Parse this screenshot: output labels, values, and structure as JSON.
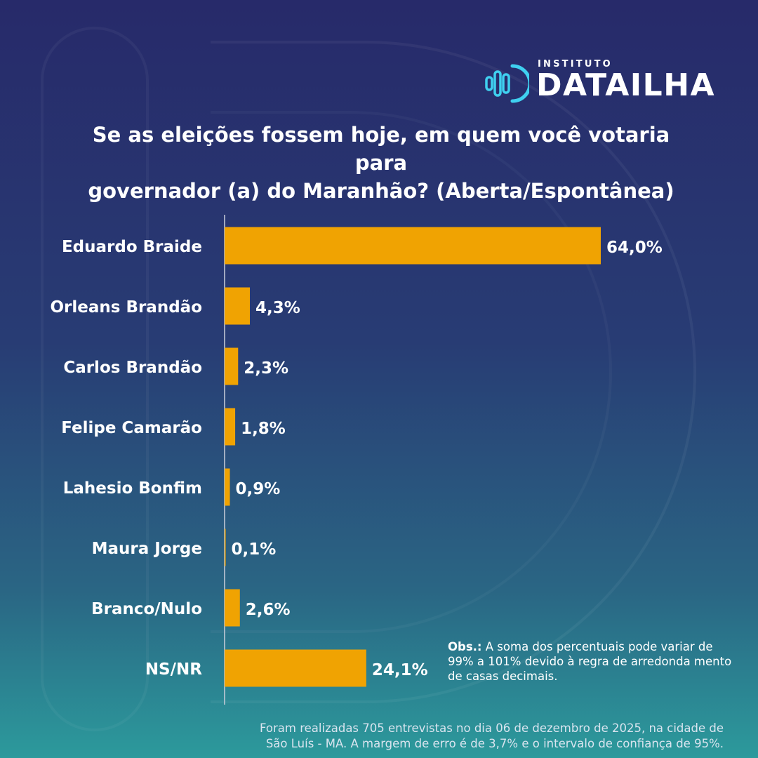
{
  "logo": {
    "small": "INSTITUTO",
    "big": "DATAILHA"
  },
  "title": {
    "line1": "Se as eleições fossem hoje, em quem você votaria para",
    "line2": "governador (a) do Maranhão? (Aberta/Espontânea)"
  },
  "chart_data": {
    "type": "bar",
    "orientation": "horizontal",
    "title": "Se as eleições fossem hoje, em quem você votaria para governador (a) do Maranhão? (Aberta/Espontânea)",
    "categories": [
      "Eduardo Braide",
      "Orleans Brandão",
      "Carlos Brandão",
      "Felipe Camarão",
      "Lahesio Bonfim",
      "Maura Jorge",
      "Branco/Nulo",
      "NS/NR"
    ],
    "values": [
      64.0,
      4.3,
      2.3,
      1.8,
      0.9,
      0.1,
      2.6,
      24.1
    ],
    "labels": [
      "64,0%",
      "4,3%",
      "2,3%",
      "1,8%",
      "0,9%",
      "0,1%",
      "2,6%",
      "24,1%"
    ],
    "xlim": [
      0,
      64.0
    ],
    "unit": "%",
    "bar_color": "#f0a302",
    "axis_color": "#c9ceda",
    "grid": false,
    "legend": "none"
  },
  "note": {
    "label": "Obs.:",
    "text": " A soma dos percentuais pode variar de 99% a 101% devido à regra de arredonda mento de casas decimais."
  },
  "footer": {
    "line1": "Foram realizadas 705 entrevistas no dia 06 de dezembro de 2025, na cidade de",
    "line2": "São Luís - MA. A margem de erro é de 3,7% e o intervalo de confiança de 95%."
  },
  "colors": {
    "bg_top": "#272a6a",
    "bg_bottom": "#2c9a9c",
    "logo_accent": "#3fd0f0",
    "bar": "#f0a302"
  }
}
